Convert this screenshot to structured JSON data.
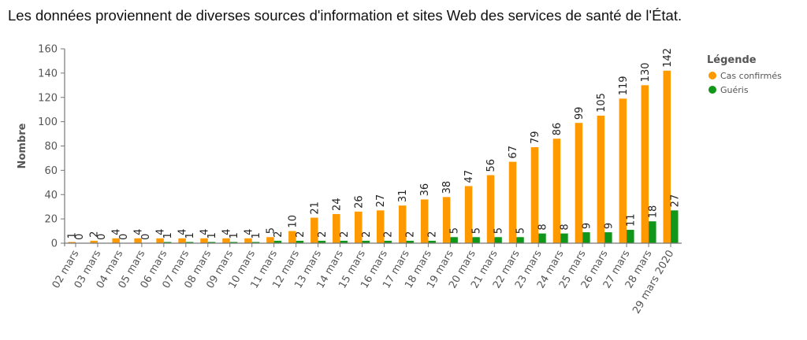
{
  "caption": "Les données proviennent de diverses sources d'information et sites Web des services de santé de l'État.",
  "chart_data": {
    "type": "bar",
    "ylabel": "Nombre",
    "xlabel": "",
    "ylim": [
      0,
      160
    ],
    "yticks": [
      0,
      20,
      40,
      60,
      80,
      100,
      120,
      140,
      160
    ],
    "grid": false,
    "legend": {
      "title": "Légende",
      "placement": "right"
    },
    "categories": [
      "02 mars",
      "03 mars",
      "04 mars",
      "05 mars",
      "06 mars",
      "07 mars",
      "08 mars",
      "09 mars",
      "10 mars",
      "11 mars",
      "12 mars",
      "13 mars",
      "14 mars",
      "15 mars",
      "16 mars",
      "17 mars",
      "18 mars",
      "19 mars",
      "20 mars",
      "21 mars",
      "22 mars",
      "23 mars",
      "24 mars",
      "25 mars",
      "26 mars",
      "27 mars",
      "28 mars",
      "29 mars 2020"
    ],
    "series": [
      {
        "name": "Cas confirmés",
        "color": "#ff9900",
        "values": [
          1,
          2,
          4,
          4,
          4,
          4,
          4,
          4,
          4,
          5,
          10,
          21,
          24,
          26,
          27,
          31,
          36,
          38,
          47,
          56,
          67,
          79,
          86,
          99,
          105,
          119,
          130,
          142
        ]
      },
      {
        "name": "Guéris",
        "color": "#109618",
        "values": [
          0,
          0,
          0,
          0,
          1,
          1,
          1,
          1,
          1,
          2,
          2,
          2,
          2,
          2,
          2,
          2,
          2,
          5,
          5,
          5,
          5,
          8,
          8,
          9,
          9,
          11,
          18,
          27
        ]
      }
    ]
  }
}
